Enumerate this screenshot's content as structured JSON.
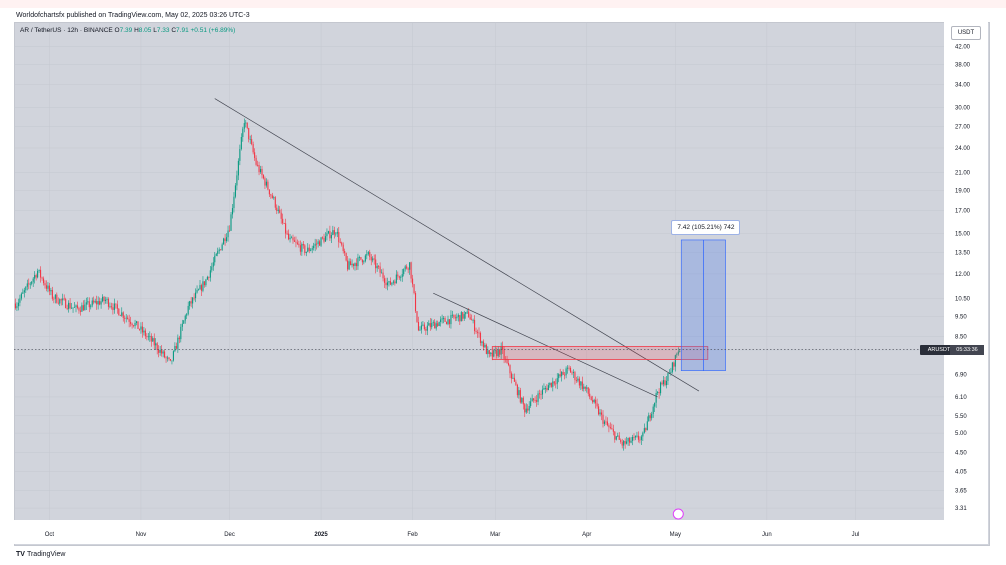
{
  "header": {
    "publisher_line": "Worldofchartsfx published on TradingView.com, May 02, 2025 03:26 UTC-3"
  },
  "legend": {
    "symbol": "AR / TetherUS · 12h · BINANCE",
    "open_label": "O",
    "open": "7.39",
    "high_label": "H",
    "high": "8.05",
    "low_label": "L",
    "low": "7.33",
    "close_label": "C",
    "close": "7.91",
    "change": "+0.51 (+6.89%)"
  },
  "price_scale": {
    "currency": "USDT",
    "ticks": [
      "42.00",
      "38.00",
      "34.00",
      "30.00",
      "27.00",
      "24.00",
      "21.00",
      "19.00",
      "17.00",
      "15.00",
      "13.50",
      "12.00",
      "10.50",
      "9.50",
      "8.50",
      "7.90",
      "6.90",
      "6.10",
      "5.50",
      "5.00",
      "4.50",
      "4.05",
      "3.65",
      "3.31"
    ]
  },
  "time_scale": {
    "labels": [
      "Oct",
      "Nov",
      "Dec",
      "2025",
      "Feb",
      "Mar",
      "Apr",
      "May",
      "Jun",
      "Jul"
    ]
  },
  "price_tag": {
    "symbol": "ARUSDT",
    "countdown": "05:33:36"
  },
  "measure": {
    "label": "7.42 (105.21%) 742"
  },
  "footer": {
    "logo": "TV",
    "brand": "TradingView"
  },
  "colors": {
    "up": "#089981",
    "down": "#f23645",
    "background": "#d1d4dc",
    "measure_fill": "#aec3ef",
    "measure_line": "#2962ff",
    "zone": "#f23645"
  },
  "chart_data": {
    "type": "candlestick",
    "symbol": "AR / TetherUS",
    "interval": "12h",
    "exchange": "BINANCE",
    "y_scale": "log",
    "ylim": [
      3.1,
      48
    ],
    "x_range": [
      "2024-09-19",
      "2025-07-31"
    ],
    "grid": true,
    "price_path": [
      {
        "date": "2024-09-20",
        "close": 10.2
      },
      {
        "date": "2024-09-27",
        "close": 12.2
      },
      {
        "date": "2024-10-02",
        "close": 10.6
      },
      {
        "date": "2024-10-10",
        "close": 9.9
      },
      {
        "date": "2024-10-20",
        "close": 10.4
      },
      {
        "date": "2024-10-30",
        "close": 9.1
      },
      {
        "date": "2024-11-06",
        "close": 8.1
      },
      {
        "date": "2024-11-11",
        "close": 7.3
      },
      {
        "date": "2024-11-17",
        "close": 10.0
      },
      {
        "date": "2024-11-23",
        "close": 11.6
      },
      {
        "date": "2024-12-01",
        "close": 15.6
      },
      {
        "date": "2024-12-06",
        "close": 28.0
      },
      {
        "date": "2024-12-10",
        "close": 22.0
      },
      {
        "date": "2024-12-16",
        "close": 18.0
      },
      {
        "date": "2024-12-21",
        "close": 14.5
      },
      {
        "date": "2024-12-27",
        "close": 13.6
      },
      {
        "date": "2025-01-06",
        "close": 15.3
      },
      {
        "date": "2025-01-10",
        "close": 12.5
      },
      {
        "date": "2025-01-17",
        "close": 13.3
      },
      {
        "date": "2025-01-24",
        "close": 11.3
      },
      {
        "date": "2025-01-31",
        "close": 12.7
      },
      {
        "date": "2025-02-03",
        "close": 8.8
      },
      {
        "date": "2025-02-10",
        "close": 9.2
      },
      {
        "date": "2025-02-20",
        "close": 9.6
      },
      {
        "date": "2025-02-27",
        "close": 7.6
      },
      {
        "date": "2025-03-03",
        "close": 7.9
      },
      {
        "date": "2025-03-11",
        "close": 5.7
      },
      {
        "date": "2025-03-19",
        "close": 6.5
      },
      {
        "date": "2025-03-26",
        "close": 7.1
      },
      {
        "date": "2025-04-01",
        "close": 6.3
      },
      {
        "date": "2025-04-07",
        "close": 5.3
      },
      {
        "date": "2025-04-13",
        "close": 4.7
      },
      {
        "date": "2025-04-20",
        "close": 4.9
      },
      {
        "date": "2025-04-25",
        "close": 6.3
      },
      {
        "date": "2025-04-29",
        "close": 6.9
      },
      {
        "date": "2025-05-02",
        "close": 7.91
      }
    ],
    "trendlines": [
      {
        "from": {
          "date": "2024-11-26",
          "price": 31.5
        },
        "to": {
          "date": "2025-05-09",
          "price": 6.3
        }
      },
      {
        "from": {
          "date": "2025-02-08",
          "price": 10.8
        },
        "to": {
          "date": "2025-04-25",
          "price": 6.1
        }
      }
    ],
    "resistance_zone": {
      "from_date": "2025-02-28",
      "to_date": "2025-05-12",
      "low": 7.5,
      "high": 8.05
    },
    "measure": {
      "from_date": "2025-05-03",
      "to_date": "2025-05-18",
      "low": 7.05,
      "high": 14.47,
      "change": 7.42,
      "percent": 105.21,
      "bars": 742
    },
    "last_price": "7.91"
  }
}
